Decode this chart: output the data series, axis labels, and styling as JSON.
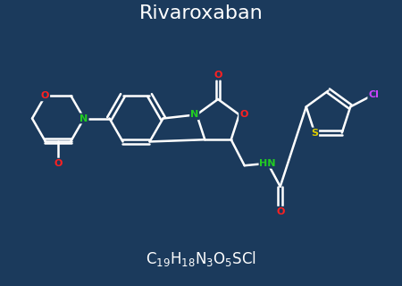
{
  "title": "Rivaroxaban",
  "bg_color": "#1b3a5c",
  "line_color": "#ffffff",
  "atom_colors": {
    "O": "#ff2020",
    "N": "#22cc22",
    "S": "#ddcc00",
    "Cl": "#cc44ff",
    "C": "#ffffff",
    "H": "#ffffff"
  },
  "title_fontsize": 16,
  "formula_fontsize": 12,
  "line_width": 1.8
}
